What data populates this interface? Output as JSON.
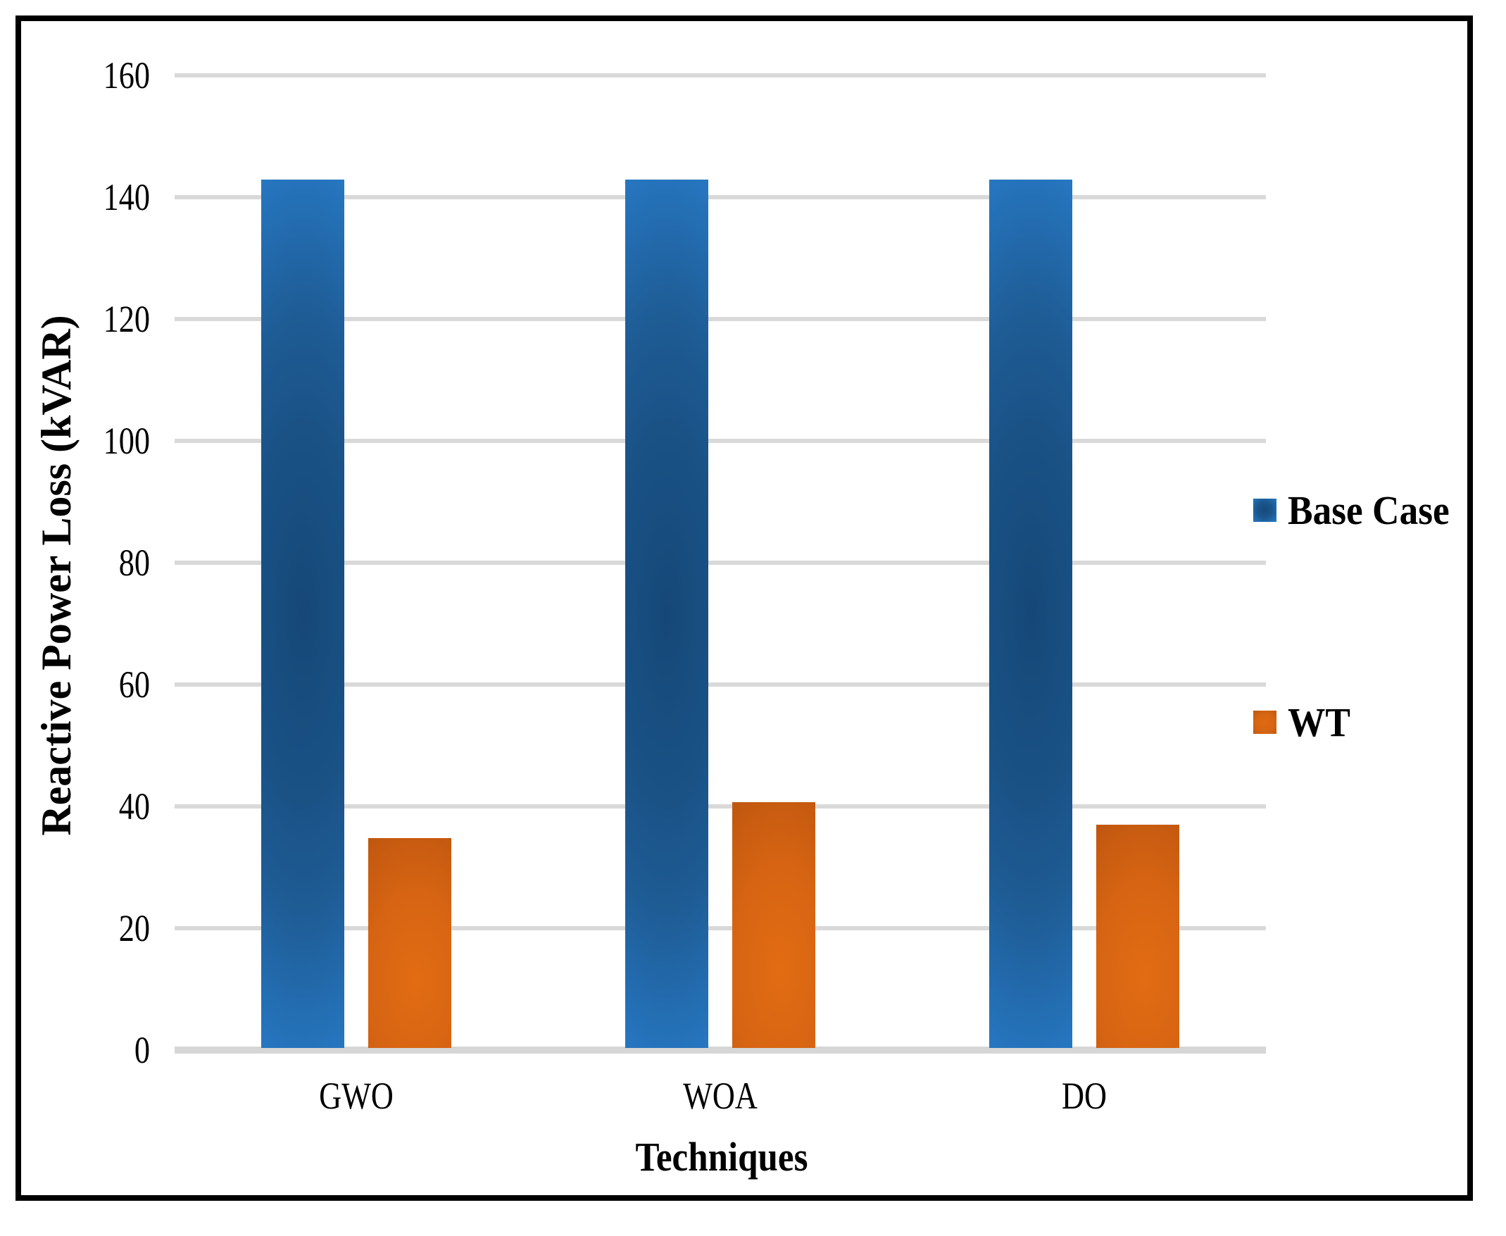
{
  "chart_data": {
    "type": "bar",
    "title": "",
    "xlabel": "Techniques",
    "ylabel": "Reactive Power Loss (kVAR)",
    "categories": [
      "GWO",
      "WOA",
      "DO"
    ],
    "series": [
      {
        "name": "Base Case",
        "color": "#2272B8",
        "values": [
          142.5,
          142.5,
          142.5
        ]
      },
      {
        "name": "WT",
        "color": "#C55A11",
        "values": [
          34.5,
          40.3,
          36.7
        ]
      }
    ],
    "ylim": [
      0,
      160
    ],
    "yticks": [
      0,
      20,
      40,
      60,
      80,
      100,
      120,
      140,
      160
    ],
    "grid": "horizontal",
    "legend_position": "right",
    "gridline_color": "#D9D9D9",
    "background": "#FFFFFF",
    "frame_color": "#000000"
  }
}
